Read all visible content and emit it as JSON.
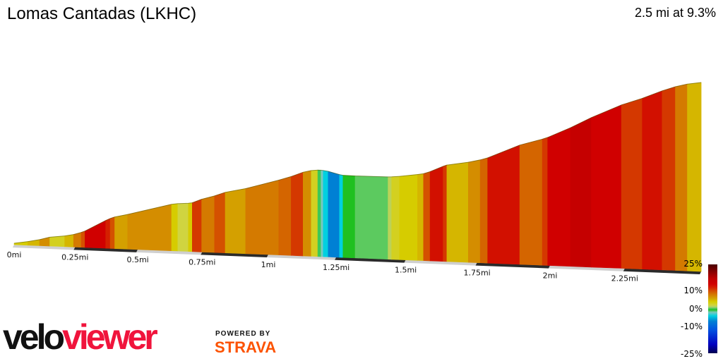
{
  "header": {
    "title": "Lomas Cantadas (LKHC)",
    "summary": "2.5 mi at 9.3%"
  },
  "chart_data": {
    "type": "area",
    "title": "Lomas Cantadas (LKHC)",
    "subtitle": "2.5 mi at 9.3%",
    "x_unit": "mi",
    "xlim": [
      0,
      2.5
    ],
    "x_ticks": [
      "0mi",
      "0.25mi",
      "0.5mi",
      "0.75mi",
      "1mi",
      "1.25mi",
      "1.5mi",
      "1.75mi",
      "2mi",
      "2.25mi"
    ],
    "x_tick_values": [
      0,
      0.25,
      0.5,
      0.75,
      1,
      1.25,
      1.5,
      1.75,
      2,
      2.25
    ],
    "color_by": "gradient %",
    "segments": [
      {
        "end_mi": 0.057,
        "grade": 4
      },
      {
        "end_mi": 0.105,
        "grade": 5
      },
      {
        "end_mi": 0.147,
        "grade": 7
      },
      {
        "end_mi": 0.208,
        "grade": 3
      },
      {
        "end_mi": 0.244,
        "grade": 5
      },
      {
        "end_mi": 0.275,
        "grade": 8
      },
      {
        "end_mi": 0.29,
        "grade": 10
      },
      {
        "end_mi": 0.373,
        "grade": 14
      },
      {
        "end_mi": 0.391,
        "grade": 12
      },
      {
        "end_mi": 0.409,
        "grade": 10
      },
      {
        "end_mi": 0.46,
        "grade": 6
      },
      {
        "end_mi": 0.632,
        "grade": 7
      },
      {
        "end_mi": 0.656,
        "grade": 4
      },
      {
        "end_mi": 0.697,
        "grade": 2
      },
      {
        "end_mi": 0.712,
        "grade": 4
      },
      {
        "end_mi": 0.748,
        "grade": 11
      },
      {
        "end_mi": 0.797,
        "grade": 8
      },
      {
        "end_mi": 0.838,
        "grade": 10
      },
      {
        "end_mi": 0.915,
        "grade": 6
      },
      {
        "end_mi": 1.039,
        "grade": 8
      },
      {
        "end_mi": 1.085,
        "grade": 9
      },
      {
        "end_mi": 1.129,
        "grade": 11
      },
      {
        "end_mi": 1.159,
        "grade": 7
      },
      {
        "end_mi": 1.183,
        "grade": 3
      },
      {
        "end_mi": 1.195,
        "grade": 0
      },
      {
        "end_mi": 1.203,
        "grade": -2
      },
      {
        "end_mi": 1.221,
        "grade": -4
      },
      {
        "end_mi": 1.262,
        "grade": -7
      },
      {
        "end_mi": 1.275,
        "grade": -4
      },
      {
        "end_mi": 1.319,
        "grade": -0.5
      },
      {
        "end_mi": 1.437,
        "grade": 0.3
      },
      {
        "end_mi": 1.45,
        "grade": 1.5
      },
      {
        "end_mi": 1.478,
        "grade": 3
      },
      {
        "end_mi": 1.542,
        "grade": 4
      },
      {
        "end_mi": 1.563,
        "grade": 5
      },
      {
        "end_mi": 1.586,
        "grade": 10
      },
      {
        "end_mi": 1.632,
        "grade": 13
      },
      {
        "end_mi": 1.645,
        "grade": 11
      },
      {
        "end_mi": 1.72,
        "grade": 5
      },
      {
        "end_mi": 1.761,
        "grade": 7
      },
      {
        "end_mi": 1.787,
        "grade": 9
      },
      {
        "end_mi": 1.897,
        "grade": 13
      },
      {
        "end_mi": 1.974,
        "grade": 9
      },
      {
        "end_mi": 1.992,
        "grade": 11
      },
      {
        "end_mi": 2.069,
        "grade": 14
      },
      {
        "end_mi": 2.139,
        "grade": 16
      },
      {
        "end_mi": 2.239,
        "grade": 14
      },
      {
        "end_mi": 2.308,
        "grade": 11
      },
      {
        "end_mi": 2.373,
        "grade": 13
      },
      {
        "end_mi": 2.416,
        "grade": 11
      },
      {
        "end_mi": 2.455,
        "grade": 8
      },
      {
        "end_mi": 2.5,
        "grade": 5
      }
    ],
    "legend": {
      "labels": [
        "25%",
        "10%",
        "0%",
        "-10%",
        "-25%"
      ],
      "stops": [
        {
          "grade": 25,
          "color": "#4a0000"
        },
        {
          "grade": 17,
          "color": "#c00000"
        },
        {
          "grade": 14,
          "color": "#d00000"
        },
        {
          "grade": 12,
          "color": "#d42000"
        },
        {
          "grade": 10,
          "color": "#d45000"
        },
        {
          "grade": 8,
          "color": "#d47a00"
        },
        {
          "grade": 6,
          "color": "#d4a000"
        },
        {
          "grade": 4,
          "color": "#d6cc00"
        },
        {
          "grade": 2,
          "color": "#d0d440"
        },
        {
          "grade": 1,
          "color": "#a8d070"
        },
        {
          "grade": 0,
          "color": "#3cc858"
        },
        {
          "grade": -0.5,
          "color": "#20c020"
        },
        {
          "grade": -2,
          "color": "#78c8c0"
        },
        {
          "grade": -4,
          "color": "#00d0e0"
        },
        {
          "grade": -7,
          "color": "#0080d4"
        },
        {
          "grade": -12,
          "color": "#0050e0"
        },
        {
          "grade": -20,
          "color": "#0000c0"
        },
        {
          "grade": -25,
          "color": "#000050"
        }
      ]
    }
  },
  "branding": {
    "logo_velo": "velo",
    "logo_viewer": "viewer",
    "powered_by": "POWERED BY",
    "strava": "STRAVA"
  }
}
